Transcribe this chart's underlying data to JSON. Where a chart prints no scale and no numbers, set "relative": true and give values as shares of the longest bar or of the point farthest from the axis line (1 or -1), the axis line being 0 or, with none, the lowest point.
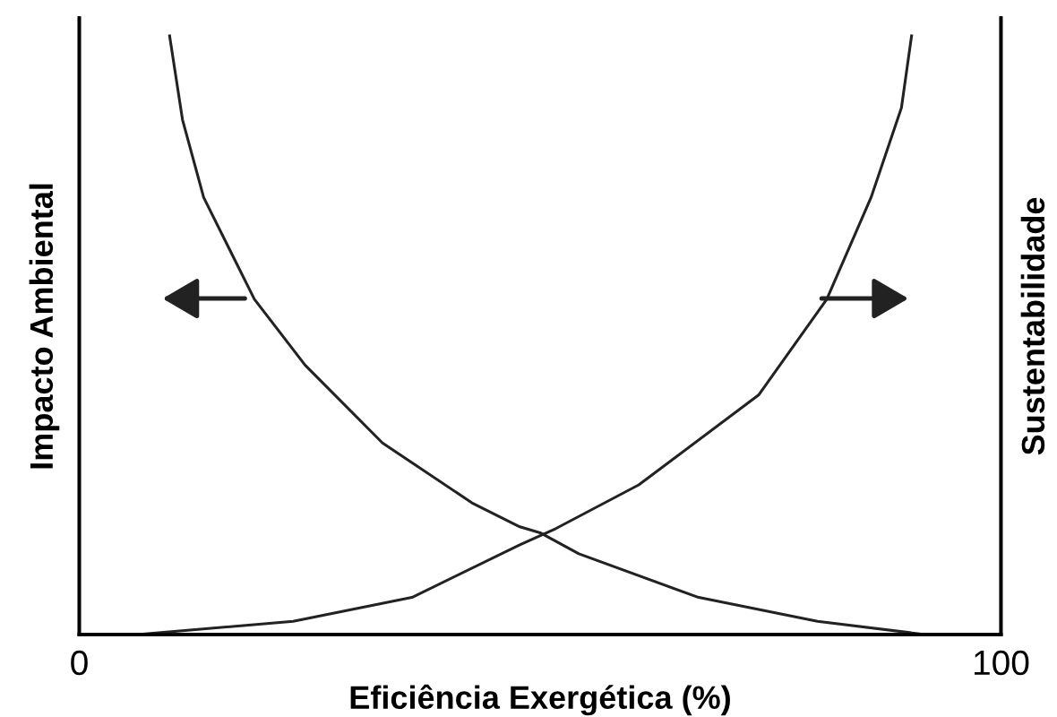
{
  "chart_data": {
    "type": "line",
    "xlabel": "Eficiência Exergética (%)",
    "ylabel": "Impacto Ambiental",
    "y2label": "Sustentabilidade",
    "relative": true,
    "xlim": [
      0,
      100
    ],
    "xticks": [
      0,
      100
    ],
    "tick_labels": "x",
    "legend": false,
    "marker": "none",
    "line_style": "solid",
    "series": [
      {
        "color": "#222222",
        "x": [
          9.8,
          11.2,
          13.5,
          19.0,
          24.5,
          32.9,
          42.6,
          47.8,
          50.0,
          54.2,
          67.2,
          80.1,
          91.8
        ],
        "values": [
          1.0,
          0.86,
          0.73,
          0.56,
          0.45,
          0.32,
          0.22,
          0.18,
          0.17,
          0.135,
          0.062,
          0.022,
          0.0
        ]
      },
      {
        "color": "#222222",
        "axis": "y2",
        "x": [
          6.3,
          23.2,
          36.1,
          47.8,
          51.7,
          60.7,
          73.7,
          81.1,
          85.9,
          89.2,
          90.3
        ],
        "values": [
          0.0,
          0.022,
          0.062,
          0.15,
          0.177,
          0.25,
          0.4,
          0.56,
          0.73,
          0.88,
          1.0
        ]
      }
    ]
  }
}
